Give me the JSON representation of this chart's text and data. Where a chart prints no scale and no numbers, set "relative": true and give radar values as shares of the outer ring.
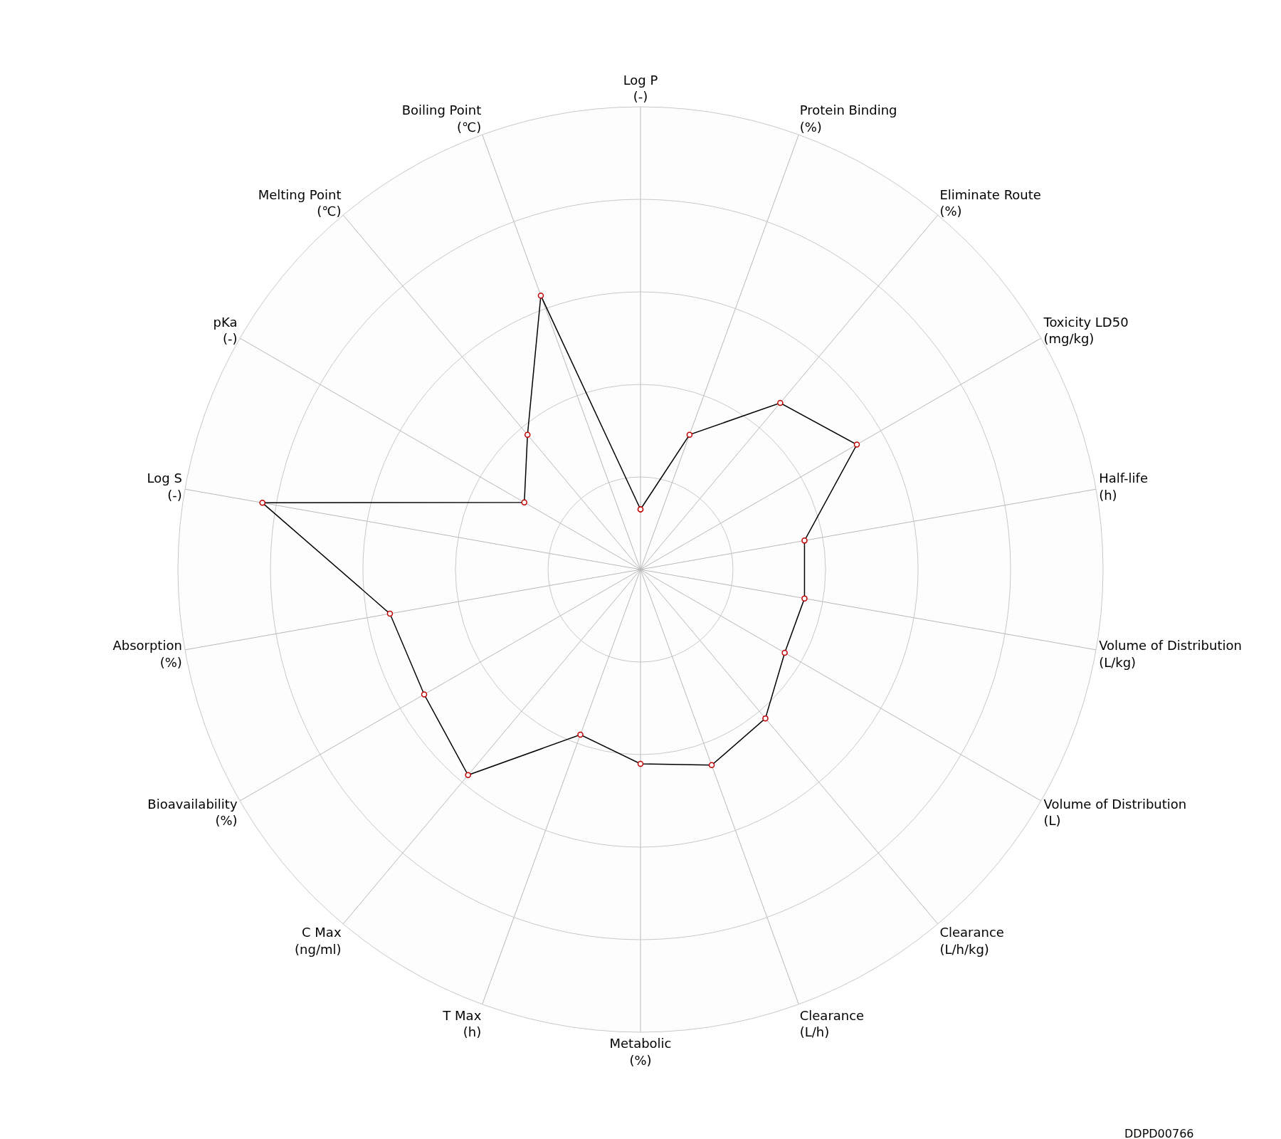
{
  "chart_data": {
    "type": "radar",
    "relative": true,
    "grid": true,
    "marker": "circle",
    "line_style": "solid",
    "categories": [
      "Log P\n(-)",
      "Protein Binding\n(%)",
      "Eliminate Route\n(%)",
      "Toxicity LD50\n(mg/kg)",
      "Half-life\n(h)",
      "Volume of Distribution\n(L/kg)",
      "Volume of Distribution\n(L)",
      "Clearance\n(L/h/kg)",
      "Clearance\n(L/h)",
      "Metabolic\n(%)",
      "T Max\n(h)",
      "C Max\n(ng/ml)",
      "Bioavailability\n(%)",
      "Absorption\n(%)",
      "Log S\n(-)",
      "pKa\n(-)",
      "Melting Point\n(℃)",
      "Boiling Point\n(℃)"
    ],
    "series": [
      {
        "color": "#000000",
        "values": [
          0.13,
          0.31,
          0.47,
          0.54,
          0.36,
          0.36,
          0.36,
          0.42,
          0.45,
          0.42,
          0.38,
          0.58,
          0.54,
          0.55,
          0.83,
          0.29,
          0.38,
          0.63
        ]
      }
    ],
    "annotations": [
      "DDPD00766"
    ]
  }
}
